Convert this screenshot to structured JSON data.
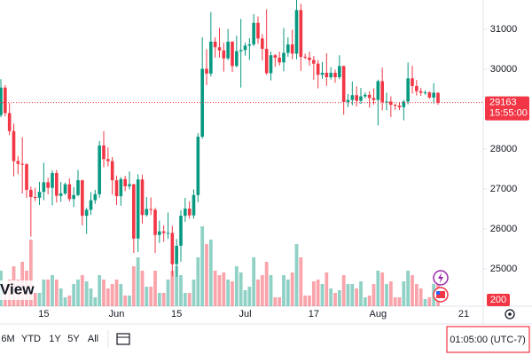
{
  "chart_data": {
    "type": "candlestick",
    "categories": [
      null,
      null,
      null,
      null,
      null,
      null,
      null,
      null,
      null,
      null,
      "15",
      null,
      null,
      null,
      null,
      null,
      null,
      null,
      null,
      null,
      null,
      null,
      null,
      null,
      null,
      null,
      null,
      "Jun",
      null,
      null,
      null,
      null,
      null,
      null,
      null,
      null,
      null,
      null,
      null,
      null,
      null,
      "15",
      null,
      null,
      null,
      null,
      null,
      null,
      null,
      null,
      null,
      null,
      null,
      null,
      null,
      null,
      null,
      "Jul",
      null,
      null,
      null,
      null,
      null,
      null,
      null,
      null,
      null,
      null,
      null,
      null,
      null,
      null,
      null,
      "17",
      null,
      null,
      null,
      null,
      null,
      null,
      null,
      null,
      null,
      null,
      null,
      null,
      null,
      null,
      "Aug",
      null,
      null,
      null,
      null,
      null,
      null,
      null,
      null,
      null,
      null,
      null,
      null,
      null,
      null,
      null,
      null,
      null,
      null,
      null,
      "21"
    ],
    "open": [
      28850,
      29540,
      28900,
      28450,
      27700,
      27630,
      27620,
      26980,
      26800,
      26780,
      26930,
      27170,
      27030,
      27400,
      26830,
      26890,
      27120,
      26750,
      26850,
      27220,
      26330,
      26480,
      26720,
      26870,
      28090,
      27750,
      27700,
      27220,
      26820,
      27250,
      27070,
      27120,
      25760,
      27240,
      26350,
      26500,
      26480,
      25850,
      25940,
      25900,
      25900,
      25120,
      25580,
      26330,
      26510,
      26340,
      26850,
      28310,
      30010,
      29890,
      30690,
      30550,
      30470,
      30270,
      30690,
      30080,
      30450,
      30480,
      30590,
      30620,
      31160,
      30770,
      30510,
      29900,
      30350,
      30290,
      30170,
      30410,
      30620,
      30390,
      31480,
      30310,
      30290,
      30230,
      30140,
      29860,
      29910,
      29800,
      29910,
      29800,
      30080,
      29180,
      29230,
      29350,
      29210,
      29320,
      29360,
      29280,
      29230,
      29700,
      29180,
      29190,
      29110,
      29090,
      29050,
      29190,
      29770,
      29580,
      29450,
      29410,
      29420,
      29290,
      29410,
      null,
      null,
      null,
      null,
      null,
      null
    ],
    "high": [
      29750,
      29600,
      29150,
      28640,
      27830,
      28300,
      27650,
      27060,
      27030,
      27180,
      27660,
      27280,
      27470,
      27480,
      27180,
      27160,
      27270,
      27050,
      27480,
      27230,
      26530,
      26920,
      26980,
      28200,
      28450,
      28040,
      27800,
      27340,
      27300,
      27330,
      27440,
      27130,
      27370,
      27360,
      26800,
      26790,
      26530,
      26210,
      26090,
      26410,
      26080,
      25750,
      26470,
      26780,
      26690,
      26990,
      28400,
      30800,
      30500,
      31430,
      30800,
      31040,
      30660,
      31010,
      30700,
      30840,
      31260,
      30660,
      30780,
      31380,
      31320,
      30880,
      31500,
      30440,
      30380,
      30440,
      31030,
      30800,
      30990,
      31800,
      31640,
      30390,
      30440,
      30330,
      30230,
      30180,
      30400,
      30050,
      29990,
      30350,
      30090,
      29380,
      29690,
      29570,
      29530,
      29420,
      29450,
      29520,
      29740,
      30040,
      29410,
      29320,
      29140,
      29170,
      29230,
      30170,
      30090,
      29730,
      29530,
      29470,
      29450,
      29650,
      29420,
      null,
      null,
      null,
      null,
      null,
      null
    ],
    "low": [
      28800,
      28820,
      28350,
      27320,
      27370,
      26890,
      26780,
      25810,
      26700,
      26600,
      26720,
      26870,
      26590,
      26660,
      26680,
      26850,
      26690,
      26550,
      26820,
      26090,
      25880,
      26350,
      26630,
      26780,
      27550,
      27570,
      26860,
      26600,
      26580,
      26950,
      26990,
      25400,
      25420,
      26140,
      26310,
      26350,
      25400,
      25650,
      25680,
      25750,
      24820,
      24800,
      25180,
      26180,
      26260,
      26260,
      26670,
      28260,
      29600,
      29820,
      30290,
      30290,
      29940,
      30230,
      29930,
      30050,
      29540,
      30340,
      30230,
      30580,
      30640,
      30220,
      29860,
      29720,
      30060,
      30090,
      29950,
      30310,
      30250,
      30250,
      29960,
      30250,
      30090,
      29740,
      29520,
      29760,
      29580,
      29740,
      29660,
      29750,
      28860,
      29050,
      29100,
      29070,
      29130,
      29270,
      29040,
      29110,
      28590,
      28970,
      28970,
      28800,
      28980,
      28980,
      28720,
      29120,
      29390,
      29340,
      29330,
      29360,
      29260,
      29140,
      29110,
      null,
      null,
      null,
      null,
      null,
      null
    ],
    "close": [
      29540,
      28900,
      28450,
      27700,
      27630,
      27620,
      26980,
      26800,
      26780,
      26930,
      27170,
      27030,
      27400,
      26830,
      26890,
      27120,
      26750,
      26850,
      27220,
      26330,
      26480,
      26720,
      26870,
      28090,
      27750,
      27700,
      27220,
      26820,
      27250,
      27070,
      27120,
      25760,
      27240,
      26350,
      26500,
      26480,
      25850,
      25940,
      25900,
      25900,
      25120,
      25580,
      26330,
      26510,
      26340,
      26850,
      28310,
      30010,
      29890,
      30690,
      30550,
      30470,
      30270,
      30690,
      30080,
      30450,
      30480,
      30590,
      30620,
      31160,
      30770,
      30510,
      29900,
      30350,
      30290,
      30170,
      30410,
      30620,
      30390,
      31480,
      30310,
      30290,
      30230,
      30140,
      29860,
      29910,
      29800,
      29910,
      29800,
      30080,
      29180,
      29230,
      29350,
      29210,
      29320,
      29360,
      29280,
      29230,
      29700,
      29180,
      29190,
      29110,
      29090,
      29050,
      29190,
      29770,
      29580,
      29450,
      29410,
      29420,
      29290,
      29410,
      29163,
      null,
      null,
      null,
      null,
      null,
      null
    ],
    "volume": [
      40,
      25,
      30,
      45,
      30,
      50,
      40,
      75,
      15,
      15,
      30,
      30,
      35,
      30,
      20,
      10,
      12,
      25,
      30,
      35,
      28,
      20,
      10,
      35,
      30,
      20,
      25,
      30,
      25,
      12,
      12,
      45,
      55,
      40,
      22,
      22,
      40,
      15,
      15,
      30,
      40,
      45,
      35,
      15,
      15,
      30,
      55,
      90,
      70,
      75,
      40,
      35,
      38,
      30,
      28,
      45,
      38,
      18,
      22,
      55,
      30,
      35,
      50,
      35,
      10,
      10,
      35,
      30,
      38,
      70,
      55,
      12,
      12,
      28,
      30,
      25,
      38,
      20,
      15,
      18,
      35,
      25,
      25,
      20,
      28,
      10,
      12,
      25,
      40,
      38,
      25,
      28,
      10,
      10,
      28,
      40,
      35,
      25,
      20,
      8,
      10,
      25,
      28,
      null,
      null,
      null,
      null,
      null,
      null
    ],
    "up_color": "#089981",
    "down_color": "#f23645",
    "ylim": [
      24067,
      31733
    ],
    "yticks": [
      25000,
      26000,
      27000,
      28000,
      29000,
      30000,
      31000
    ],
    "hidden_ticks": [
      29000
    ],
    "last_price": 29163,
    "countdown": "15:55:00",
    "scale_badge": "200",
    "grid": false
  },
  "watermark": "View",
  "toolbar": {
    "ranges": [
      "6M",
      "YTD",
      "1Y",
      "5Y",
      "All"
    ],
    "clock": "01:05:00 (UTC-7)"
  }
}
